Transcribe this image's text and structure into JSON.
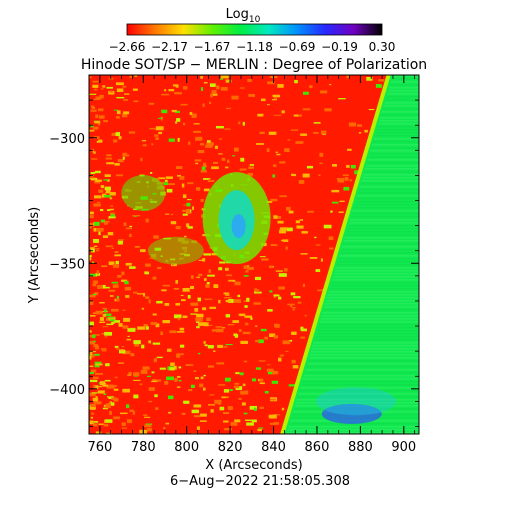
{
  "colorbar": {
    "label": "Log",
    "label_subscript": "10",
    "ticks": [
      "−2.66",
      "−2.17",
      "−1.67",
      "−1.18",
      "−0.69",
      "−0.19",
      "0.30"
    ],
    "colors": [
      "#ff0000",
      "#ff7a00",
      "#ffe000",
      "#63f000",
      "#00ee44",
      "#00e8c0",
      "#0090ff",
      "#2828ff",
      "#7000c0",
      "#000000"
    ]
  },
  "chart_data": {
    "type": "heatmap",
    "title": "Hinode SOT/SP − MERLIN : Degree of Polarization",
    "xlabel": "X (Arcseconds)",
    "ylabel": "Y (Arcseconds)",
    "xlim": [
      755,
      907
    ],
    "ylim": [
      -418,
      -275
    ],
    "x_ticks": [
      760,
      780,
      800,
      820,
      840,
      860,
      880,
      900
    ],
    "y_ticks": [
      -300,
      -350,
      -400
    ],
    "x_tick_labels": [
      "760",
      "780",
      "800",
      "820",
      "840",
      "860",
      "880",
      "900"
    ],
    "y_tick_labels": [
      "−300",
      "−350",
      "−400"
    ],
    "value_scale": "log10",
    "value_range": [
      -2.66,
      0.3
    ],
    "timestamp": "6−Aug−2022 21:58:05.308",
    "features": {
      "limb_line": [
        [
          844,
          -418
        ],
        [
          893,
          -275
        ]
      ],
      "disk_region_color": "#ff1a00",
      "offlimb_region_color": "#10e850",
      "active_patch_center": [
        823,
        -332
      ],
      "active_patch_color": "#20d8a8"
    }
  }
}
